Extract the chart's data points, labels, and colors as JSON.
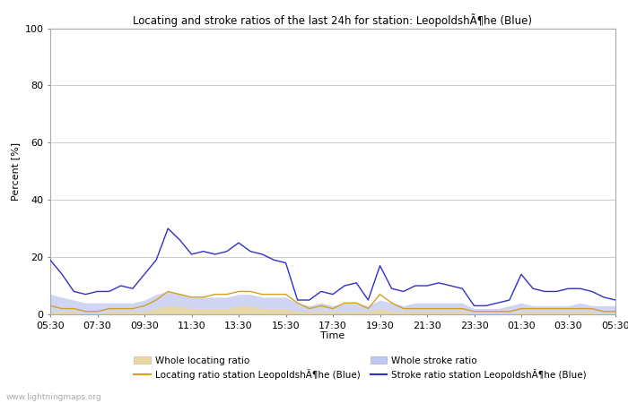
{
  "title": "Locating and stroke ratios of the last 24h for station: LeopoldshÃ¶he (Blue)",
  "ylabel": "Percent [%]",
  "xlabel": "Time",
  "ylim": [
    0,
    100
  ],
  "yticks": [
    0,
    20,
    40,
    60,
    80,
    100
  ],
  "xtick_labels": [
    "05:30",
    "07:30",
    "09:30",
    "11:30",
    "13:30",
    "15:30",
    "17:30",
    "19:30",
    "21:30",
    "23:30",
    "01:30",
    "03:30",
    "05:30"
  ],
  "watermark": "www.lightningmaps.org",
  "legend": {
    "whole_locating": "Whole locating ratio",
    "locating_station": "Locating ratio station LeopoldshÃ¶he (Blue)",
    "whole_stroke": "Whole stroke ratio",
    "stroke_station": "Stroke ratio station LeopoldshÃ¶he (Blue)"
  },
  "colors": {
    "whole_locating_fill": "#e8d8a0",
    "locating_station_line": "#d4a020",
    "whole_stroke_fill": "#c0c8f0",
    "stroke_station_line": "#3030cc"
  },
  "stroke_station": [
    19,
    14,
    8,
    7,
    8,
    8,
    10,
    9,
    14,
    19,
    30,
    26,
    21,
    22,
    21,
    22,
    25,
    22,
    21,
    19,
    18,
    5,
    5,
    8,
    7,
    10,
    11,
    5,
    17,
    9,
    8,
    10,
    10,
    11,
    10,
    9,
    3,
    3,
    4,
    5,
    14,
    9,
    8,
    8,
    9,
    9,
    8,
    6,
    5
  ],
  "whole_stroke": [
    7,
    6,
    5,
    4,
    4,
    4,
    4,
    4,
    5,
    7,
    8,
    7,
    6,
    6,
    6,
    6,
    7,
    7,
    6,
    6,
    6,
    4,
    3,
    4,
    3,
    4,
    4,
    3,
    5,
    4,
    3,
    4,
    4,
    4,
    4,
    4,
    2,
    2,
    2,
    3,
    4,
    3,
    3,
    3,
    3,
    4,
    3,
    3,
    3
  ],
  "locating_station": [
    3,
    2,
    2,
    1,
    1,
    2,
    2,
    2,
    3,
    5,
    8,
    7,
    6,
    6,
    7,
    7,
    8,
    8,
    7,
    7,
    7,
    4,
    2,
    3,
    2,
    4,
    4,
    2,
    7,
    4,
    2,
    2,
    2,
    2,
    2,
    2,
    1,
    1,
    1,
    1,
    2,
    2,
    2,
    2,
    2,
    2,
    2,
    1,
    1
  ],
  "whole_locating": [
    1,
    1,
    1,
    0,
    0,
    1,
    1,
    1,
    1,
    2,
    3,
    3,
    2,
    2,
    2,
    2,
    3,
    3,
    2,
    2,
    2,
    1,
    1,
    1,
    1,
    1,
    1,
    1,
    2,
    1,
    1,
    1,
    1,
    1,
    1,
    1,
    0,
    0,
    0,
    0,
    1,
    1,
    1,
    1,
    1,
    1,
    1,
    0,
    0
  ],
  "figsize": [
    7.0,
    4.5
  ],
  "dpi": 100
}
